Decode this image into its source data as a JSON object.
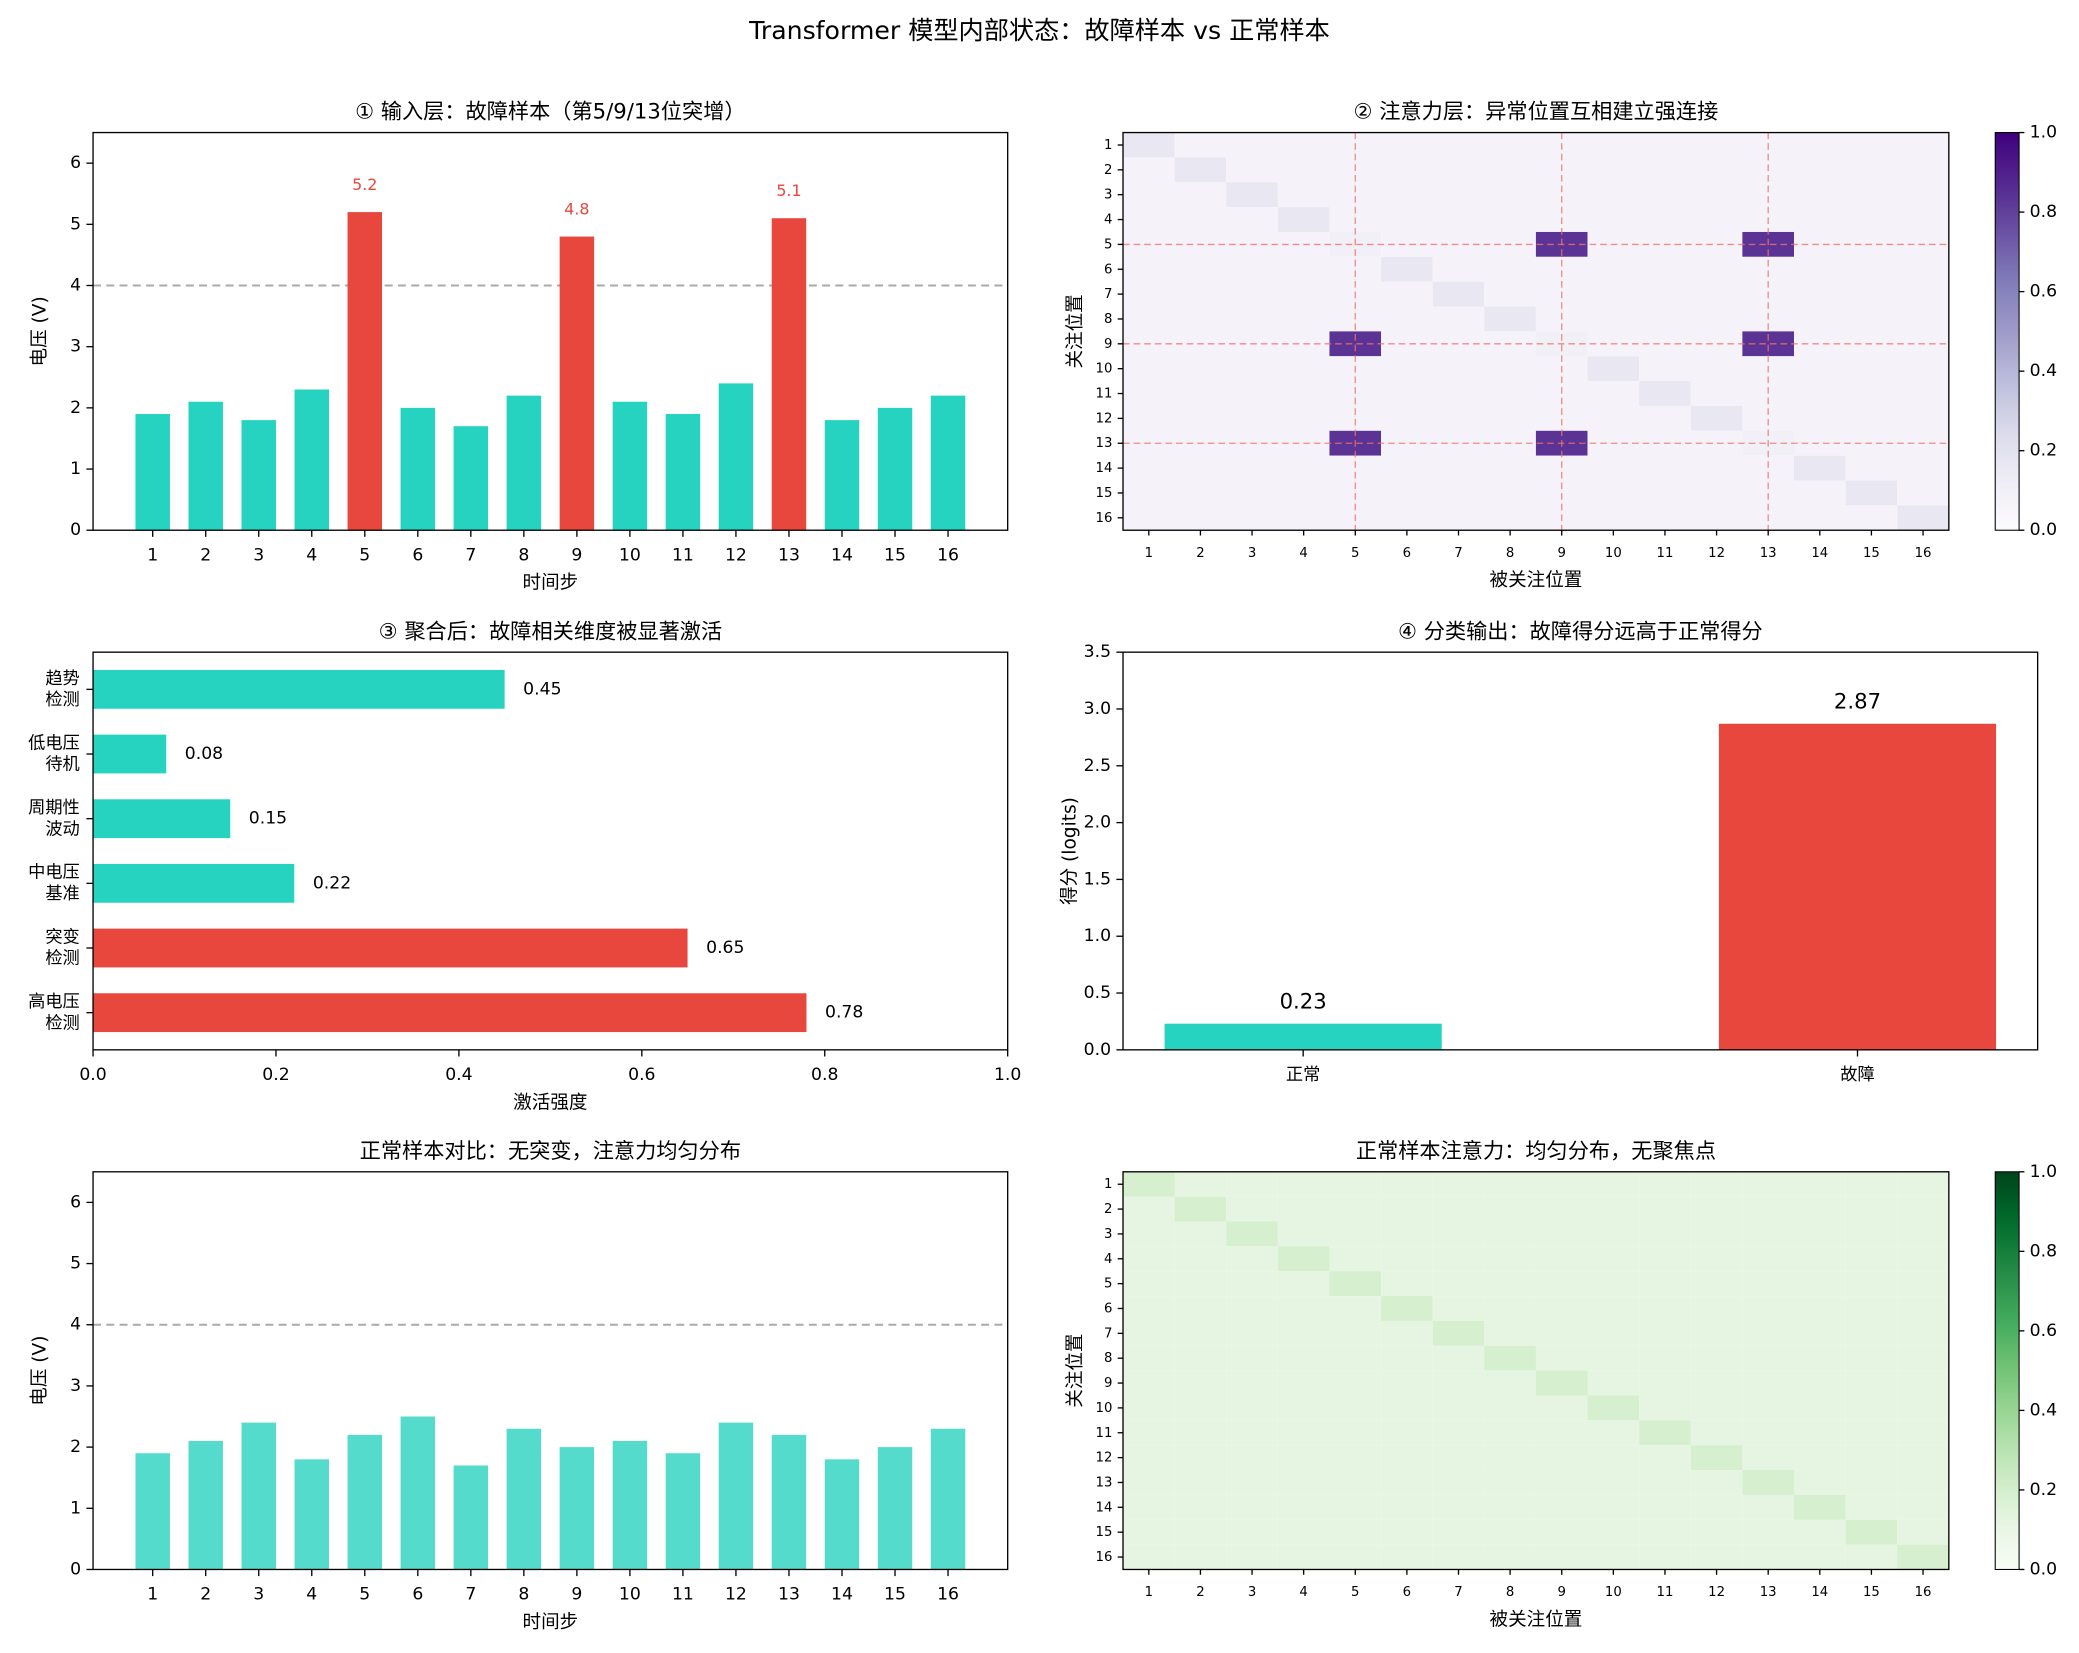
{
  "title": "Transformer 模型内部状态：故障样本 vs 正常样本",
  "chart_data": [
    {
      "type": "bar",
      "title": "① 输入层：故障样本（第5/9/13位突增）",
      "xlabel": "时间步",
      "ylabel": "电压 (V)",
      "categories": [
        "1",
        "2",
        "3",
        "4",
        "5",
        "6",
        "7",
        "8",
        "9",
        "10",
        "11",
        "12",
        "13",
        "14",
        "15",
        "16"
      ],
      "values": [
        1.9,
        2.1,
        1.8,
        2.3,
        5.2,
        2.0,
        1.7,
        2.2,
        4.8,
        2.1,
        1.9,
        2.4,
        5.1,
        1.8,
        2.0,
        2.2
      ],
      "colors": [
        "#26d3c0",
        "#26d3c0",
        "#26d3c0",
        "#26d3c0",
        "#e8473e",
        "#26d3c0",
        "#26d3c0",
        "#26d3c0",
        "#e8473e",
        "#26d3c0",
        "#26d3c0",
        "#26d3c0",
        "#e8473e",
        "#26d3c0",
        "#26d3c0",
        "#26d3c0"
      ],
      "value_labels": [
        null,
        null,
        null,
        null,
        "5.2",
        null,
        null,
        null,
        "4.8",
        null,
        null,
        null,
        "5.1",
        null,
        null,
        null
      ],
      "threshold": 4,
      "ylim": [
        0,
        6.5
      ],
      "yticks": [
        0,
        1,
        2,
        3,
        4,
        5,
        6
      ]
    },
    {
      "type": "heatmap",
      "title": "② 注意力层：异常位置互相建立强连接",
      "xlabel": "被关注位置",
      "ylabel": "关注位置",
      "xlim": [
        0.5,
        16.5
      ],
      "ylim": [
        0.5,
        16.5
      ],
      "xticks": [
        1,
        2,
        3,
        4,
        5,
        6,
        7,
        8,
        9,
        10,
        11,
        12,
        13,
        14,
        15,
        16
      ],
      "yticks": [
        1,
        2,
        3,
        4,
        5,
        6,
        7,
        8,
        9,
        10,
        11,
        12,
        13,
        14,
        15,
        16
      ],
      "values": [
        [
          0.16,
          0.07,
          0.07,
          0.07,
          0.07,
          0.07,
          0.07,
          0.07,
          0.07,
          0.07,
          0.07,
          0.07,
          0.07,
          0.07,
          0.07,
          0.07
        ],
        [
          0.07,
          0.16,
          0.07,
          0.07,
          0.07,
          0.07,
          0.07,
          0.07,
          0.07,
          0.07,
          0.07,
          0.07,
          0.07,
          0.07,
          0.07,
          0.07
        ],
        [
          0.07,
          0.07,
          0.16,
          0.07,
          0.07,
          0.07,
          0.07,
          0.07,
          0.07,
          0.07,
          0.07,
          0.07,
          0.07,
          0.07,
          0.07,
          0.07
        ],
        [
          0.07,
          0.07,
          0.07,
          0.16,
          0.07,
          0.07,
          0.07,
          0.07,
          0.07,
          0.07,
          0.07,
          0.07,
          0.07,
          0.07,
          0.07,
          0.07
        ],
        [
          0.07,
          0.07,
          0.07,
          0.07,
          0.1,
          0.07,
          0.07,
          0.07,
          0.84,
          0.07,
          0.07,
          0.07,
          0.84,
          0.07,
          0.07,
          0.07
        ],
        [
          0.07,
          0.07,
          0.07,
          0.07,
          0.07,
          0.16,
          0.07,
          0.07,
          0.07,
          0.07,
          0.07,
          0.07,
          0.07,
          0.07,
          0.07,
          0.07
        ],
        [
          0.07,
          0.07,
          0.07,
          0.07,
          0.07,
          0.07,
          0.16,
          0.07,
          0.07,
          0.07,
          0.07,
          0.07,
          0.07,
          0.07,
          0.07,
          0.07
        ],
        [
          0.07,
          0.07,
          0.07,
          0.07,
          0.07,
          0.07,
          0.07,
          0.16,
          0.07,
          0.07,
          0.07,
          0.07,
          0.07,
          0.07,
          0.07,
          0.07
        ],
        [
          0.07,
          0.07,
          0.07,
          0.07,
          0.84,
          0.07,
          0.07,
          0.07,
          0.1,
          0.07,
          0.07,
          0.07,
          0.84,
          0.07,
          0.07,
          0.07
        ],
        [
          0.07,
          0.07,
          0.07,
          0.07,
          0.07,
          0.07,
          0.07,
          0.07,
          0.07,
          0.16,
          0.07,
          0.07,
          0.07,
          0.07,
          0.07,
          0.07
        ],
        [
          0.07,
          0.07,
          0.07,
          0.07,
          0.07,
          0.07,
          0.07,
          0.07,
          0.07,
          0.07,
          0.16,
          0.07,
          0.07,
          0.07,
          0.07,
          0.07
        ],
        [
          0.07,
          0.07,
          0.07,
          0.07,
          0.07,
          0.07,
          0.07,
          0.07,
          0.07,
          0.07,
          0.07,
          0.16,
          0.07,
          0.07,
          0.07,
          0.07
        ],
        [
          0.07,
          0.07,
          0.07,
          0.07,
          0.84,
          0.07,
          0.07,
          0.07,
          0.84,
          0.07,
          0.07,
          0.07,
          0.1,
          0.07,
          0.07,
          0.07
        ],
        [
          0.07,
          0.07,
          0.07,
          0.07,
          0.07,
          0.07,
          0.07,
          0.07,
          0.07,
          0.07,
          0.07,
          0.07,
          0.07,
          0.16,
          0.07,
          0.07
        ],
        [
          0.07,
          0.07,
          0.07,
          0.07,
          0.07,
          0.07,
          0.07,
          0.07,
          0.07,
          0.07,
          0.07,
          0.07,
          0.07,
          0.07,
          0.16,
          0.07
        ],
        [
          0.07,
          0.07,
          0.07,
          0.07,
          0.07,
          0.07,
          0.07,
          0.07,
          0.07,
          0.07,
          0.07,
          0.07,
          0.07,
          0.07,
          0.07,
          0.16
        ]
      ],
      "cmap": "Purples",
      "clim": [
        0,
        1
      ],
      "cticks": [
        {
          "value": 0,
          "label": "0.0"
        },
        {
          "value": 0.2,
          "label": "0.2"
        },
        {
          "value": 0.4,
          "label": "0.4"
        },
        {
          "value": 0.6,
          "label": "0.6"
        },
        {
          "value": 0.8,
          "label": "0.8"
        },
        {
          "value": 1,
          "label": "1.0"
        }
      ],
      "highlight": [
        5,
        9,
        13
      ],
      "highlight_color": "#f07070"
    },
    {
      "type": "barh",
      "title": "③ 聚合后：故障相关维度被显著激活",
      "xlabel": "激活强度",
      "categories": [
        [
          "高电压",
          "检测"
        ],
        [
          "突变",
          "检测"
        ],
        [
          "中电压",
          "基准"
        ],
        [
          "周期性",
          "波动"
        ],
        [
          "低电压",
          "待机"
        ],
        [
          "趋势",
          "检测"
        ]
      ],
      "values": [
        0.78,
        0.65,
        0.22,
        0.15,
        0.08,
        0.45
      ],
      "colors": [
        "#e8473e",
        "#e8473e",
        "#26d3c0",
        "#26d3c0",
        "#26d3c0",
        "#26d3c0"
      ],
      "data_labels": true,
      "xlim": [
        0,
        1
      ],
      "xticks": [
        {
          "value": 0,
          "label": "0.0"
        },
        {
          "value": 0.2,
          "label": "0.2"
        },
        {
          "value": 0.4,
          "label": "0.4"
        },
        {
          "value": 0.6,
          "label": "0.6"
        },
        {
          "value": 0.8,
          "label": "0.8"
        },
        {
          "value": 1,
          "label": "1.0"
        }
      ]
    },
    {
      "type": "bar",
      "title": "④ 分类输出：故障得分远高于正常得分",
      "ylabel": "得分 (logits)",
      "categories": [
        "正常",
        "故障"
      ],
      "values": [
        0.23,
        2.87
      ],
      "colors": [
        "#26d3c0",
        "#e8473e"
      ],
      "data_labels": true,
      "ylim": [
        0,
        3.5
      ],
      "yticks": [
        {
          "value": 0,
          "label": "0.0"
        },
        {
          "value": 0.5,
          "label": "0.5"
        },
        {
          "value": 1,
          "label": "1.0"
        },
        {
          "value": 1.5,
          "label": "1.5"
        },
        {
          "value": 2,
          "label": "2.0"
        },
        {
          "value": 2.5,
          "label": "2.5"
        },
        {
          "value": 3,
          "label": "3.0"
        },
        {
          "value": 3.5,
          "label": "3.5"
        }
      ]
    },
    {
      "type": "bar",
      "title": "正常样本对比：无突变，注意力均匀分布",
      "xlabel": "时间步",
      "ylabel": "电压 (V)",
      "categories": [
        "1",
        "2",
        "3",
        "4",
        "5",
        "6",
        "7",
        "8",
        "9",
        "10",
        "11",
        "12",
        "13",
        "14",
        "15",
        "16"
      ],
      "values": [
        1.9,
        2.1,
        2.4,
        1.8,
        2.2,
        2.5,
        1.7,
        2.3,
        2.0,
        2.1,
        1.9,
        2.4,
        2.2,
        1.8,
        2.0,
        2.3
      ],
      "color": "#55dbcb",
      "threshold": 4,
      "ylim": [
        0,
        6.5
      ],
      "yticks": [
        0,
        1,
        2,
        3,
        4,
        5,
        6
      ]
    },
    {
      "type": "heatmap",
      "title": "正常样本注意力：均匀分布，无聚焦点",
      "xlabel": "被关注位置",
      "ylabel": "关注位置",
      "xlim": [
        0.5,
        16.5
      ],
      "ylim": [
        0.5,
        16.5
      ],
      "xticks": [
        1,
        2,
        3,
        4,
        5,
        6,
        7,
        8,
        9,
        10,
        11,
        12,
        13,
        14,
        15,
        16
      ],
      "yticks": [
        1,
        2,
        3,
        4,
        5,
        6,
        7,
        8,
        9,
        10,
        11,
        12,
        13,
        14,
        15,
        16
      ],
      "values": [
        [
          0.19,
          0.12,
          0.12,
          0.12,
          0.12,
          0.12,
          0.12,
          0.12,
          0.12,
          0.12,
          0.12,
          0.12,
          0.12,
          0.12,
          0.12,
          0.12
        ],
        [
          0.12,
          0.19,
          0.12,
          0.12,
          0.12,
          0.12,
          0.12,
          0.12,
          0.12,
          0.12,
          0.12,
          0.12,
          0.12,
          0.12,
          0.12,
          0.12
        ],
        [
          0.12,
          0.12,
          0.19,
          0.12,
          0.12,
          0.12,
          0.12,
          0.12,
          0.12,
          0.12,
          0.12,
          0.12,
          0.12,
          0.12,
          0.12,
          0.12
        ],
        [
          0.12,
          0.12,
          0.12,
          0.19,
          0.12,
          0.12,
          0.12,
          0.12,
          0.12,
          0.12,
          0.12,
          0.12,
          0.12,
          0.12,
          0.12,
          0.12
        ],
        [
          0.12,
          0.12,
          0.12,
          0.12,
          0.19,
          0.12,
          0.12,
          0.12,
          0.12,
          0.12,
          0.12,
          0.12,
          0.12,
          0.12,
          0.12,
          0.12
        ],
        [
          0.12,
          0.12,
          0.12,
          0.12,
          0.12,
          0.19,
          0.12,
          0.12,
          0.12,
          0.12,
          0.12,
          0.12,
          0.12,
          0.12,
          0.12,
          0.12
        ],
        [
          0.12,
          0.12,
          0.12,
          0.12,
          0.12,
          0.12,
          0.19,
          0.12,
          0.12,
          0.12,
          0.12,
          0.12,
          0.12,
          0.12,
          0.12,
          0.12
        ],
        [
          0.12,
          0.12,
          0.12,
          0.12,
          0.12,
          0.12,
          0.12,
          0.19,
          0.12,
          0.12,
          0.12,
          0.12,
          0.12,
          0.12,
          0.12,
          0.12
        ],
        [
          0.12,
          0.12,
          0.12,
          0.12,
          0.12,
          0.12,
          0.12,
          0.12,
          0.19,
          0.12,
          0.12,
          0.12,
          0.12,
          0.12,
          0.12,
          0.12
        ],
        [
          0.12,
          0.12,
          0.12,
          0.12,
          0.12,
          0.12,
          0.12,
          0.12,
          0.12,
          0.19,
          0.12,
          0.12,
          0.12,
          0.12,
          0.12,
          0.12
        ],
        [
          0.12,
          0.12,
          0.12,
          0.12,
          0.12,
          0.12,
          0.12,
          0.12,
          0.12,
          0.12,
          0.19,
          0.12,
          0.12,
          0.12,
          0.12,
          0.12
        ],
        [
          0.12,
          0.12,
          0.12,
          0.12,
          0.12,
          0.12,
          0.12,
          0.12,
          0.12,
          0.12,
          0.12,
          0.19,
          0.12,
          0.12,
          0.12,
          0.12
        ],
        [
          0.12,
          0.12,
          0.12,
          0.12,
          0.12,
          0.12,
          0.12,
          0.12,
          0.12,
          0.12,
          0.12,
          0.12,
          0.19,
          0.12,
          0.12,
          0.12
        ],
        [
          0.12,
          0.12,
          0.12,
          0.12,
          0.12,
          0.12,
          0.12,
          0.12,
          0.12,
          0.12,
          0.12,
          0.12,
          0.12,
          0.19,
          0.12,
          0.12
        ],
        [
          0.12,
          0.12,
          0.12,
          0.12,
          0.12,
          0.12,
          0.12,
          0.12,
          0.12,
          0.12,
          0.12,
          0.12,
          0.12,
          0.12,
          0.19,
          0.12
        ],
        [
          0.12,
          0.12,
          0.12,
          0.12,
          0.12,
          0.12,
          0.12,
          0.12,
          0.12,
          0.12,
          0.12,
          0.12,
          0.12,
          0.12,
          0.12,
          0.19
        ]
      ],
      "cmap": "Greens",
      "clim": [
        0,
        1
      ],
      "cticks": [
        {
          "value": 0,
          "label": "0.0"
        },
        {
          "value": 0.2,
          "label": "0.2"
        },
        {
          "value": 0.4,
          "label": "0.4"
        },
        {
          "value": 0.6,
          "label": "0.6"
        },
        {
          "value": 0.8,
          "label": "0.8"
        },
        {
          "value": 1,
          "label": "1.0"
        }
      ]
    }
  ]
}
